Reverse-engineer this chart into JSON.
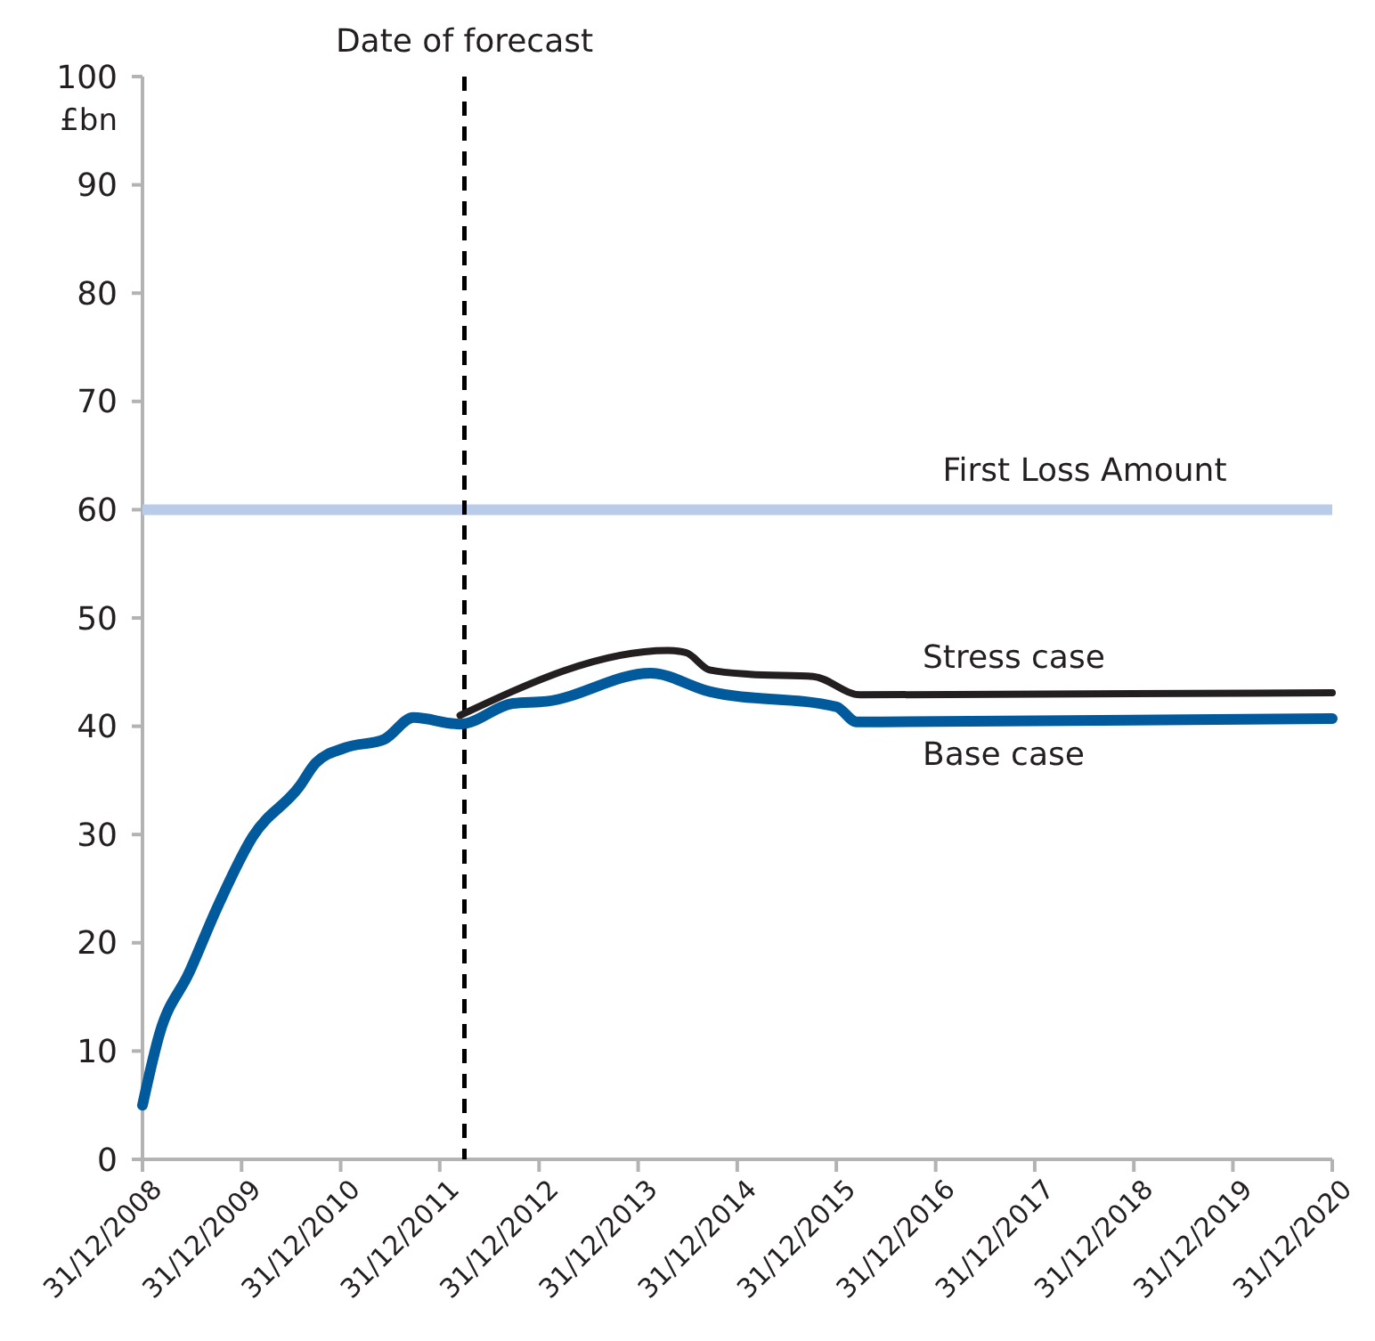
{
  "chart_data": {
    "type": "line",
    "ylabel": "£bn",
    "ylim": [
      0,
      100
    ],
    "yticks": [
      0,
      10,
      20,
      30,
      40,
      50,
      60,
      70,
      80,
      90,
      100
    ],
    "xlim": [
      "2008-12-31",
      "2020-12-31"
    ],
    "xticks": [
      {
        "value": "2008-12-31",
        "label": "31/12/2008"
      },
      {
        "value": "2009-12-31",
        "label": "31/12/2009"
      },
      {
        "value": "2010-12-31",
        "label": "31/12/2010"
      },
      {
        "value": "2011-12-31",
        "label": "31/12/2011"
      },
      {
        "value": "2012-12-31",
        "label": "31/12/2012"
      },
      {
        "value": "2013-12-31",
        "label": "31/12/2013"
      },
      {
        "value": "2014-12-31",
        "label": "31/12/2014"
      },
      {
        "value": "2015-12-31",
        "label": "31/12/2015"
      },
      {
        "value": "2016-12-31",
        "label": "31/12/2016"
      },
      {
        "value": "2017-12-31",
        "label": "31/12/2017"
      },
      {
        "value": "2018-12-31",
        "label": "31/12/2018"
      },
      {
        "value": "2019-12-31",
        "label": "31/12/2019"
      },
      {
        "value": "2020-12-31",
        "label": "31/12/2020"
      }
    ],
    "grid": false,
    "legend": false,
    "marker": "none",
    "line_style": "solid",
    "series": [
      {
        "name": "Stress case",
        "color": "#231f20",
        "x": [
          "2012-03-15",
          "2014-04-20",
          "2014-06-25",
          "2014-09-20",
          "2015-02-15",
          "2015-10-07",
          "2016-03-28",
          "2020-12-31"
        ],
        "values": [
          41.0,
          47.0,
          46.8,
          45.2,
          44.8,
          44.6,
          42.9,
          43.1
        ]
      },
      {
        "name": "Base case",
        "color": "#005a9c",
        "x": [
          "2008-12-31",
          "2009-03-05",
          "2009-06-20",
          "2009-10-01",
          "2010-02-10",
          "2010-07-31",
          "2010-09-30",
          "2011-01-15",
          "2011-06-10",
          "2011-09-25",
          "2012-03-15",
          "2012-09-25",
          "2013-01-28",
          "2014-02-15",
          "2014-09-20",
          "2015-12-31",
          "2016-03-15",
          "2020-12-31"
        ],
        "values": [
          5,
          11.7,
          17.2,
          23.2,
          29.8,
          34.4,
          36.6,
          38.0,
          38.8,
          40.8,
          40.2,
          42.1,
          42.3,
          44.9,
          43.2,
          41.8,
          40.4,
          40.7
        ]
      }
    ],
    "ref_lines": [
      {
        "axis": "y",
        "value": 60,
        "label": "First Loss Amount",
        "color": "#b9cbe8",
        "line_style": "solid"
      },
      {
        "axis": "x",
        "value": "2012-03-31",
        "label": "Date of forecast",
        "color": "#000000",
        "line_style": "dashed"
      }
    ]
  }
}
